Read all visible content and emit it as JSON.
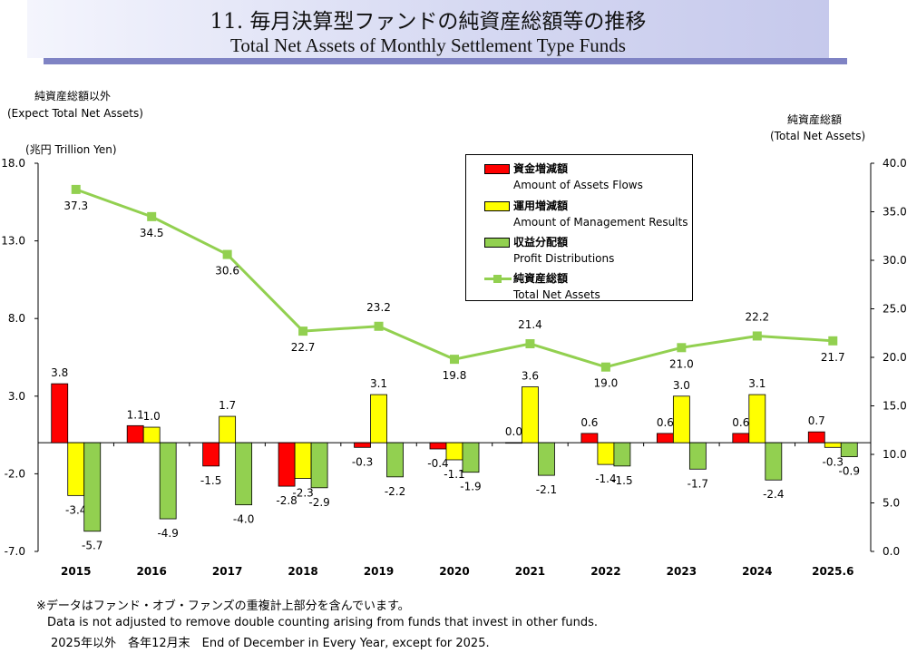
{
  "header": {
    "title_jp": "11. 毎月決算型ファンドの純資産総額等の推移",
    "title_en": "Total Net Assets of Monthly Settlement Type Funds"
  },
  "axes": {
    "left_title_jp": "純資産総額以外",
    "left_title_en": "(Expect Total Net Assets)",
    "left_unit": "(兆円  Trillion Yen)",
    "right_title_jp": "純資産総額",
    "right_title_en": "(Total Net Assets)"
  },
  "legend": [
    {
      "jp": "資金増減額",
      "en": "Amount of Assets Flows",
      "color": "#ff0000",
      "kind": "bar"
    },
    {
      "jp": "運用増減額",
      "en": "Amount of Management Results",
      "color": "#ffff00",
      "kind": "bar"
    },
    {
      "jp": "収益分配額",
      "en": "Profit Distributions",
      "color": "#92d050",
      "kind": "bar"
    },
    {
      "jp": "純資産総額",
      "en": "Total Net Assets",
      "color": "#92d050",
      "kind": "line"
    }
  ],
  "footnotes": {
    "line1": "※データはファンド・オブ・ファンズの重複計上部分を含んでいます。",
    "line2": "Data is not adjusted to remove double counting arising from funds that invest in other funds.",
    "line3": "2025年以外　各年12月末　End of December in Every Year, except for 2025."
  },
  "chart_data": {
    "type": "bar",
    "categories": [
      "2015",
      "2016",
      "2017",
      "2018",
      "2019",
      "2020",
      "2021",
      "2022",
      "2023",
      "2024",
      "2025.6"
    ],
    "series": [
      {
        "name": "資金増減額 Amount of Assets Flows",
        "axis": "left",
        "color": "#ff0000",
        "values": [
          3.8,
          1.1,
          -1.5,
          -2.8,
          -0.3,
          -0.4,
          0.0,
          0.6,
          0.6,
          0.6,
          0.7
        ],
        "labels": [
          "3.8",
          "1.1",
          "-1.5",
          "-2.8",
          "-0.3",
          "-0.4",
          "0.0",
          "0.6",
          "0.6",
          "0.6",
          "0.7"
        ]
      },
      {
        "name": "運用増減額 Amount of Management Results",
        "axis": "left",
        "color": "#ffff00",
        "values": [
          -3.4,
          1.0,
          1.7,
          -2.3,
          3.1,
          -1.1,
          3.6,
          -1.4,
          3.0,
          3.1,
          -0.3
        ],
        "labels": [
          "-3.4",
          "1.0",
          "1.7",
          "-2.3",
          "3.1",
          "-1.1",
          "3.6",
          "-1.4",
          "3.0",
          "3.1",
          "-0.3"
        ]
      },
      {
        "name": "収益分配額 Profit Distributions",
        "axis": "left",
        "color": "#92d050",
        "values": [
          -5.7,
          -4.9,
          -4.0,
          -2.9,
          -2.2,
          -1.9,
          -2.1,
          -1.5,
          -1.7,
          -2.4,
          -0.9
        ],
        "labels": [
          "-5.7",
          "-4.9",
          "-4.0",
          "-2.9",
          "-2.2",
          "-1.9",
          "-2.1",
          "-1.5",
          "-1.7",
          "-2.4",
          "-0.9"
        ]
      },
      {
        "name": "純資産総額 Total Net Assets",
        "axis": "right",
        "type": "line",
        "color": "#92d050",
        "values": [
          37.3,
          34.5,
          30.6,
          22.7,
          23.2,
          19.8,
          21.4,
          19.0,
          21.0,
          22.2,
          21.7
        ],
        "labels": [
          "37.3",
          "34.5",
          "30.6",
          "22.7",
          "23.2",
          "19.8",
          "21.4",
          "19.0",
          "21.0",
          "22.2",
          "21.7"
        ]
      }
    ],
    "y_left": {
      "min": -7.0,
      "max": 18.0,
      "ticks": [
        "18.0",
        "13.0",
        "8.0",
        "3.0",
        "-2.0",
        "-7.0"
      ]
    },
    "y_right": {
      "min": 0.0,
      "max": 40.0,
      "ticks": [
        "40.0",
        "35.0",
        "30.0",
        "25.0",
        "20.0",
        "15.0",
        "10.0",
        "5.0",
        "0.0"
      ]
    },
    "grid": false,
    "legend_position": "top-right"
  }
}
